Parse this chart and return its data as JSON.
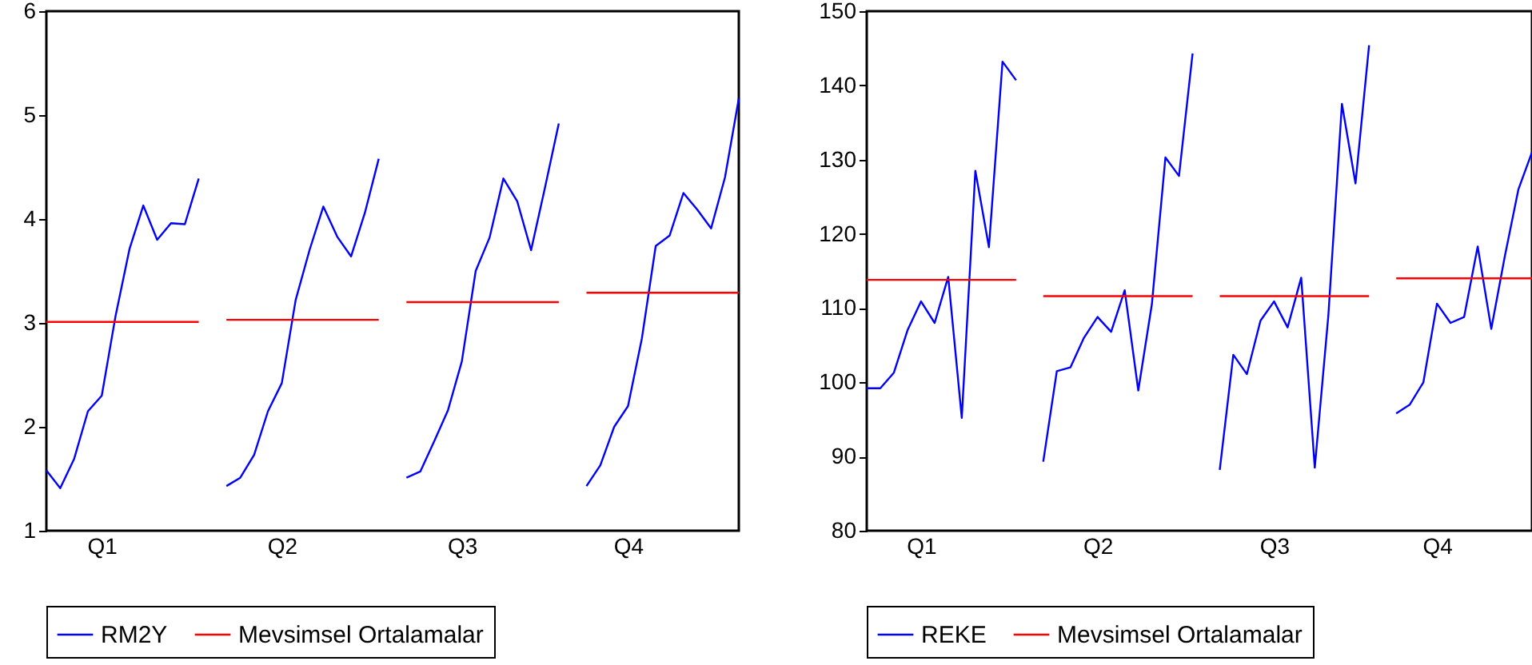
{
  "chart_data": [
    {
      "type": "line",
      "categories": [
        null,
        null,
        null,
        null,
        "Q1",
        null,
        null,
        null,
        null,
        null,
        null,
        null,
        null,
        null,
        null,
        null,
        null,
        "Q2",
        null,
        null,
        null,
        null,
        null,
        null,
        null,
        null,
        null,
        null,
        null,
        null,
        "Q3",
        null,
        null,
        null,
        null,
        null,
        null,
        null,
        null,
        null,
        null,
        null,
        "Q4",
        null,
        null,
        null,
        null,
        null,
        null,
        null,
        null
      ],
      "ylim": [
        1,
        6
      ],
      "yticks": [
        1,
        2,
        3,
        4,
        5,
        6
      ],
      "legend": "bottom",
      "series": [
        {
          "name": "RM2Y",
          "color": "#0000ff",
          "values": [
            1.58,
            1.41,
            1.69,
            2.15,
            2.3,
            3.07,
            3.71,
            4.13,
            3.8,
            3.96,
            3.95,
            4.39,
            null,
            1.43,
            1.51,
            1.73,
            2.15,
            2.42,
            3.22,
            3.7,
            4.12,
            3.83,
            3.64,
            4.06,
            4.58,
            null,
            1.51,
            1.57,
            1.86,
            2.16,
            2.63,
            3.5,
            3.82,
            4.39,
            4.17,
            3.7,
            4.3,
            4.92,
            null,
            1.43,
            1.63,
            2.0,
            2.2,
            2.85,
            3.74,
            3.84,
            4.25,
            4.09,
            3.91,
            4.4,
            5.16
          ]
        },
        {
          "name": "Mevsimsel Ortalamalar",
          "color": "#ff0000",
          "values": [
            3.01,
            3.01,
            3.01,
            3.01,
            3.01,
            3.01,
            3.01,
            3.01,
            3.01,
            3.01,
            3.01,
            3.01,
            null,
            3.03,
            3.03,
            3.03,
            3.03,
            3.03,
            3.03,
            3.03,
            3.03,
            3.03,
            3.03,
            3.03,
            3.03,
            null,
            3.2,
            3.2,
            3.2,
            3.2,
            3.2,
            3.2,
            3.2,
            3.2,
            3.2,
            3.2,
            3.2,
            3.2,
            null,
            3.29,
            3.29,
            3.29,
            3.29,
            3.29,
            3.29,
            3.29,
            3.29,
            3.29,
            3.29,
            3.29,
            3.29
          ]
        }
      ]
    },
    {
      "type": "line",
      "categories": [
        null,
        null,
        null,
        null,
        "Q1",
        null,
        null,
        null,
        null,
        null,
        null,
        null,
        null,
        null,
        null,
        null,
        null,
        "Q2",
        null,
        null,
        null,
        null,
        null,
        null,
        null,
        null,
        null,
        null,
        null,
        null,
        "Q3",
        null,
        null,
        null,
        null,
        null,
        null,
        null,
        null,
        null,
        null,
        null,
        "Q4",
        null,
        null,
        null,
        null,
        null,
        null,
        null
      ],
      "ylim": [
        80,
        150
      ],
      "yticks": [
        80,
        90,
        100,
        110,
        120,
        130,
        140,
        150
      ],
      "legend": "bottom",
      "series": [
        {
          "name": "REKE",
          "color": "#0000ff",
          "values": [
            99.2,
            99.2,
            101.3,
            107,
            110.9,
            108,
            114.2,
            95.2,
            128.5,
            118.2,
            143.2,
            140.7,
            null,
            89.3,
            101.5,
            102,
            106,
            108.8,
            106.8,
            112.4,
            98.9,
            110.5,
            130.3,
            127.8,
            144.3,
            null,
            88.2,
            103.7,
            101.1,
            108.3,
            110.9,
            107.4,
            114.1,
            88.5,
            109,
            137.5,
            126.8,
            145.4,
            null,
            95.8,
            97,
            100,
            110.6,
            108,
            108.8,
            118.3,
            107.2,
            117,
            126,
            131
          ]
        },
        {
          "name": "Mevsimsel Ortalamalar",
          "color": "#ff0000",
          "values": [
            113.8,
            113.8,
            113.8,
            113.8,
            113.8,
            113.8,
            113.8,
            113.8,
            113.8,
            113.8,
            113.8,
            113.8,
            null,
            111.6,
            111.6,
            111.6,
            111.6,
            111.6,
            111.6,
            111.6,
            111.6,
            111.6,
            111.6,
            111.6,
            111.6,
            null,
            111.6,
            111.6,
            111.6,
            111.6,
            111.6,
            111.6,
            111.6,
            111.6,
            111.6,
            111.6,
            111.6,
            111.6,
            null,
            114,
            114,
            114,
            114,
            114,
            114,
            114,
            114,
            114,
            114,
            114
          ]
        }
      ]
    }
  ]
}
